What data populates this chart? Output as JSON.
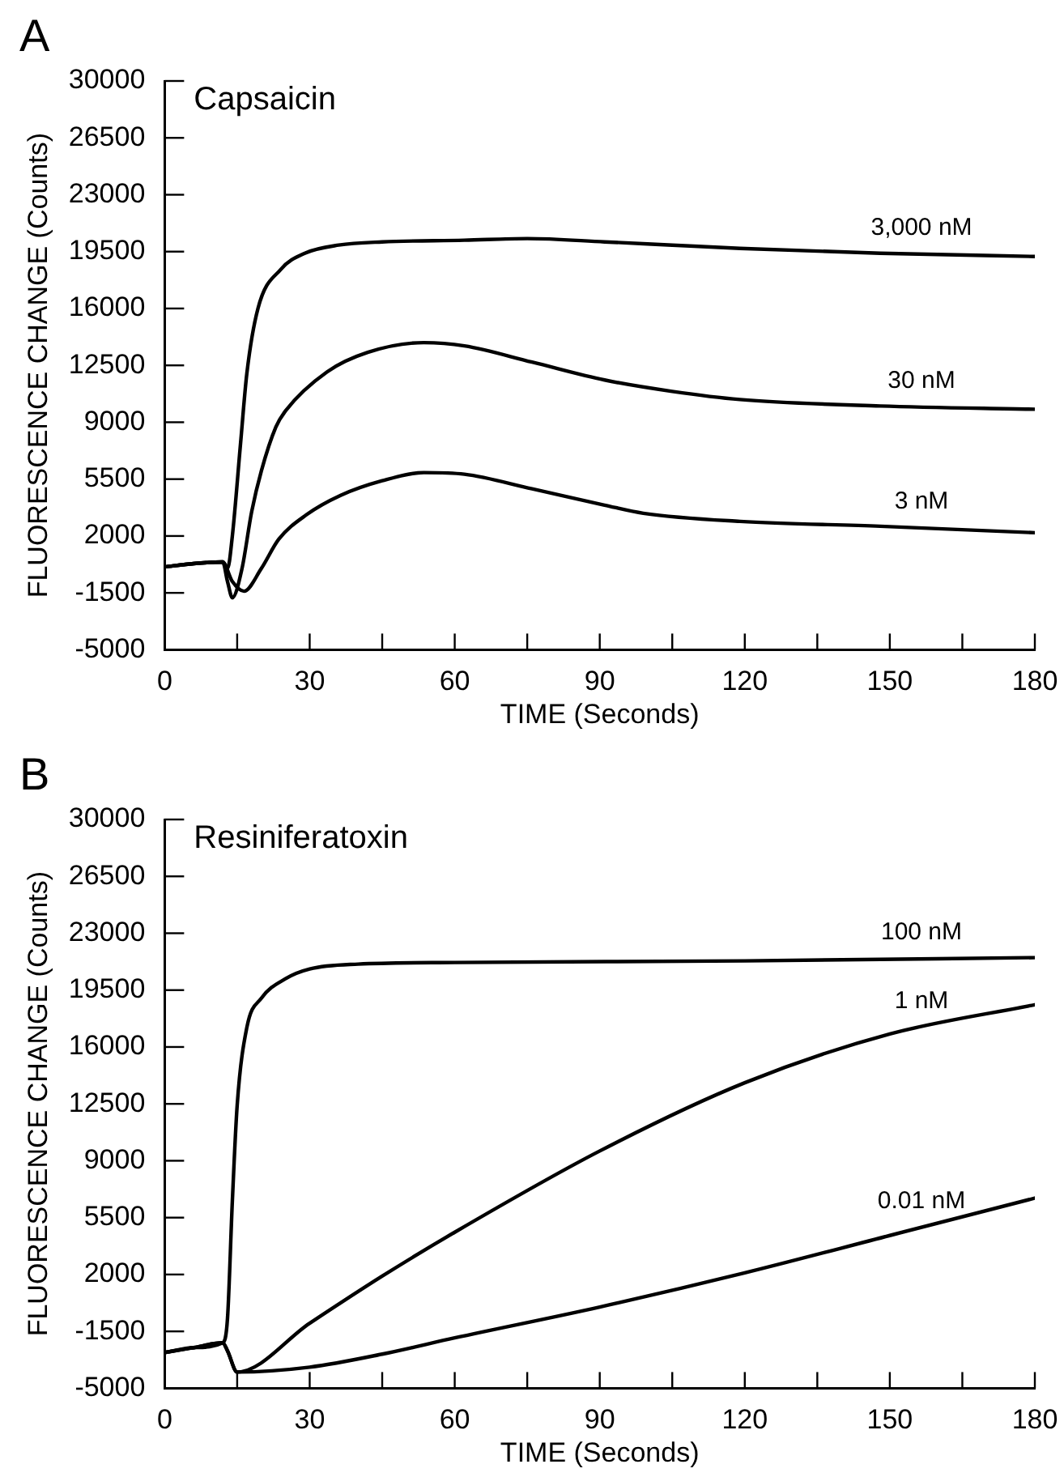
{
  "chart_data": [
    {
      "type": "line",
      "title": "Capsaicin",
      "xlabel": "TIME (Seconds)",
      "ylabel": "FLUORESCENCE CHANGE (Counts)",
      "annotations": [
        "A"
      ],
      "xlim": [
        0,
        180
      ],
      "xticks": [
        0,
        {
          "value": 15,
          "label": null
        },
        30,
        {
          "value": 45,
          "label": null
        },
        60,
        {
          "value": 75,
          "label": null
        },
        90,
        {
          "value": 105,
          "label": null
        },
        120,
        {
          "value": 135,
          "label": null
        },
        150,
        {
          "value": 165,
          "label": null
        },
        180
      ],
      "ylim": [
        -5000,
        30000
      ],
      "yticks": [
        -5000,
        -1500,
        2000,
        5500,
        9000,
        12500,
        16000,
        19500,
        23000,
        26500,
        30000
      ],
      "grid": false,
      "legend": false,
      "marker": "none",
      "line_style": "solid",
      "series": [
        {
          "name": "3,000 nM",
          "color": "#000000",
          "x": [
            0,
            6,
            12,
            13,
            14,
            15.7,
            17,
            19.3,
            24,
            29,
            36,
            45,
            62,
            75,
            91,
            105,
            119,
            148,
            180
          ],
          "values": [
            100,
            300,
            400,
            0,
            2000,
            7700,
            12000,
            16000,
            18400,
            19400,
            19900,
            20100,
            20200,
            20300,
            20100,
            19900,
            19700,
            19400,
            19200
          ]
        },
        {
          "name": "30 nM",
          "color": "#000000",
          "x": [
            0,
            6,
            12,
            13,
            14,
            16,
            18,
            20,
            23,
            25,
            33.6,
            42,
            53.6,
            62,
            76,
            91,
            105,
            119,
            148,
            180
          ],
          "values": [
            100,
            300,
            400,
            -800,
            -1800,
            0,
            3500,
            6000,
            8700,
            9700,
            12100,
            13300,
            13900,
            13700,
            12700,
            11600,
            10900,
            10400,
            10000,
            9800
          ]
        },
        {
          "name": "3 nM",
          "color": "#000000",
          "x": [
            0,
            6,
            12,
            14,
            16.4,
            20,
            23.6,
            29.3,
            36.4,
            45,
            53.6,
            62,
            76,
            91,
            99,
            119,
            148,
            180
          ],
          "values": [
            100,
            300,
            400,
            -800,
            -1400,
            0,
            1800,
            3300,
            4500,
            5400,
            5900,
            5800,
            4900,
            3900,
            3400,
            2900,
            2600,
            2200
          ]
        }
      ]
    },
    {
      "type": "line",
      "title": "Resiniferatoxin",
      "xlabel": "TIME (Seconds)",
      "ylabel": "FLUORESCENCE CHANGE (Counts)",
      "annotations": [
        "B"
      ],
      "xlim": [
        0,
        180
      ],
      "xticks": [
        0,
        {
          "value": 15,
          "label": null
        },
        30,
        {
          "value": 45,
          "label": null
        },
        60,
        {
          "value": 75,
          "label": null
        },
        90,
        {
          "value": 105,
          "label": null
        },
        120,
        {
          "value": 135,
          "label": null
        },
        150,
        {
          "value": 165,
          "label": null
        },
        180
      ],
      "ylim": [
        -5000,
        30000
      ],
      "yticks": [
        -5000,
        -1500,
        2000,
        5500,
        9000,
        12500,
        16000,
        19500,
        23000,
        26500,
        30000
      ],
      "grid": false,
      "legend": false,
      "marker": "none",
      "line_style": "solid",
      "series": [
        {
          "name": "100 nM",
          "color": "#000000",
          "x": [
            0,
            6,
            12,
            13,
            14,
            15,
            17,
            20,
            25,
            30,
            40,
            60,
            120,
            180
          ],
          "values": [
            -2800,
            -2500,
            -2200,
            -700,
            6500,
            12400,
            17200,
            19000,
            20200,
            20800,
            21100,
            21200,
            21300,
            21500
          ]
        },
        {
          "name": "1 nM",
          "color": "#000000",
          "x": [
            0,
            6,
            12,
            13,
            15,
            30,
            45,
            60,
            90,
            120,
            150,
            180
          ],
          "values": [
            -2800,
            -2500,
            -2200,
            -2700,
            -4000,
            -1000,
            1900,
            4600,
            9600,
            13800,
            16800,
            18600
          ]
        },
        {
          "name": "0.01 nM",
          "color": "#000000",
          "x": [
            0,
            6,
            12,
            13,
            15,
            30,
            45,
            60,
            90,
            120,
            150,
            180
          ],
          "values": [
            -2800,
            -2500,
            -2200,
            -2700,
            -4000,
            -3700,
            -2900,
            -1900,
            0,
            2100,
            4400,
            6700
          ]
        }
      ]
    }
  ]
}
